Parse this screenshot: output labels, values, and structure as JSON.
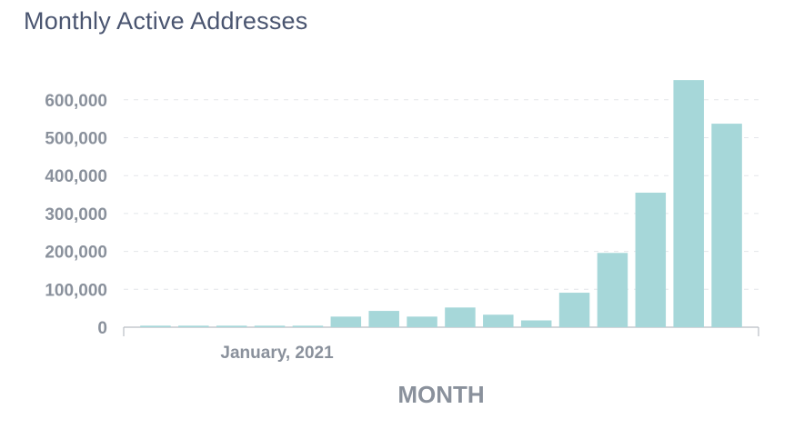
{
  "chart_data": {
    "type": "bar",
    "title": "Monthly Active Addresses",
    "xlabel": "MONTH",
    "ylabel": "",
    "ylim": [
      0,
      660000
    ],
    "yticks": [
      0,
      100000,
      200000,
      300000,
      400000,
      500000,
      600000
    ],
    "ytick_labels": [
      "0",
      "100,000",
      "200,000",
      "300,000",
      "400,000",
      "500,000",
      "600,000"
    ],
    "x_tick_label": "January, 2021",
    "x_tick_category_index": 3,
    "grid": true,
    "bar_color": "#a6d7d9",
    "series": [
      {
        "values": [
          4000,
          4000,
          4000,
          4000,
          4000,
          28000,
          43000,
          28000,
          52000,
          33000,
          18000,
          91000,
          196000,
          355000,
          652000,
          537000
        ]
      }
    ]
  }
}
